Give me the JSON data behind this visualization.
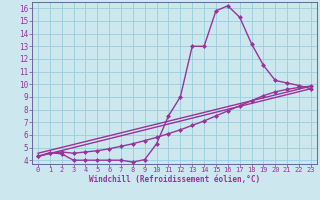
{
  "xlabel": "Windchill (Refroidissement éolien,°C)",
  "bg_color": "#cce8ee",
  "line_color": "#993399",
  "grid_color": "#99ccdd",
  "axis_color": "#666699",
  "xlim": [
    -0.5,
    23.5
  ],
  "ylim": [
    3.7,
    16.5
  ],
  "xticks": [
    0,
    1,
    2,
    3,
    4,
    5,
    6,
    7,
    8,
    9,
    10,
    11,
    12,
    13,
    14,
    15,
    16,
    17,
    18,
    19,
    20,
    21,
    22,
    23
  ],
  "yticks": [
    4,
    5,
    6,
    7,
    8,
    9,
    10,
    11,
    12,
    13,
    14,
    15,
    16
  ],
  "line1_x": [
    0,
    1,
    2,
    3,
    4,
    5,
    6,
    7,
    8,
    9,
    10,
    11,
    12,
    13,
    14,
    15,
    16,
    17,
    18,
    19,
    20,
    21,
    22,
    23
  ],
  "line1_y": [
    4.3,
    4.6,
    4.5,
    4.0,
    4.0,
    4.0,
    4.0,
    4.0,
    3.85,
    4.05,
    5.3,
    7.5,
    9.0,
    13.0,
    13.0,
    15.8,
    16.2,
    15.3,
    13.2,
    11.5,
    10.3,
    10.1,
    9.9,
    9.65
  ],
  "line2_x": [
    0,
    1,
    2,
    3,
    4,
    5,
    6,
    7,
    8,
    9,
    10,
    11,
    12,
    13,
    14,
    15,
    16,
    17,
    18,
    19,
    20,
    21,
    22,
    23
  ],
  "line2_y": [
    4.3,
    4.55,
    4.65,
    4.55,
    4.65,
    4.75,
    4.9,
    5.1,
    5.3,
    5.55,
    5.8,
    6.1,
    6.4,
    6.75,
    7.1,
    7.5,
    7.9,
    8.3,
    8.7,
    9.1,
    9.4,
    9.6,
    9.75,
    9.85
  ],
  "line3_x": [
    0,
    23
  ],
  "line3_y": [
    4.3,
    9.65
  ],
  "line4_x": [
    0,
    23
  ],
  "line4_y": [
    4.55,
    9.85
  ],
  "marker_size": 2.5,
  "linewidth": 1.0
}
